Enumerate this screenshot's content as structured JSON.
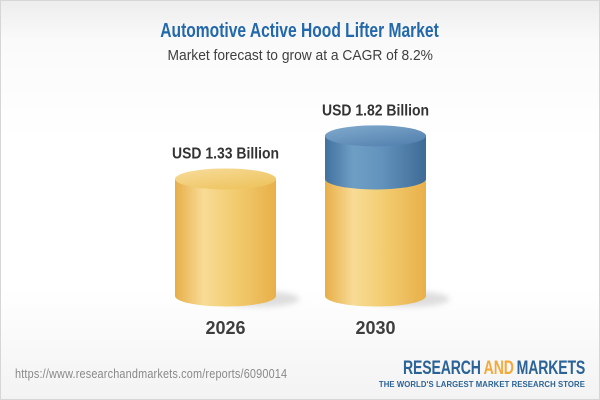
{
  "header": {
    "title": "Automotive Active Hood Lifter Market",
    "subtitle": "Market forecast to grow at a CAGR of 8.2%"
  },
  "chart_data": {
    "type": "bar",
    "variant": "3d-cylinder-stacked",
    "title": "Automotive Active Hood Lifter Market",
    "subtitle": "Market forecast to grow at a CAGR of 8.2%",
    "categories": [
      "2026",
      "2030"
    ],
    "values": [
      1.33,
      1.82
    ],
    "value_labels": [
      "USD 1.33 Billion",
      "USD 1.82 Billion"
    ],
    "unit": "USD Billion",
    "base_value": 1.33,
    "growth_value": 0.49,
    "cagr_percent": 8.2,
    "ylim": [
      0,
      2.05
    ],
    "legend": "none",
    "grid": "off",
    "colors": {
      "gold": {
        "edge": "#E7AE47",
        "light": "#F8DB96",
        "mid": "#F3CE74",
        "edge2": "#E8B049",
        "top_light": "#F7DC9B",
        "top_dark": "#EEC45F"
      },
      "blue": {
        "edge": "#41719E",
        "light": "#6F9EC5",
        "mid": "#6394BD",
        "edge2": "#3E6B96",
        "top_light": "#82ABCE",
        "top_dark": "#5583B0"
      },
      "shadow": "#C4C4C4",
      "value_label": "#333333",
      "year_label": "#3E3E3E"
    }
  },
  "footer": {
    "url": "https://www.researchandmarkets.com/reports/6090014",
    "logo": {
      "word1": "RESEARCH",
      "word2": "AND",
      "word3": "MARKETS",
      "tagline": "THE WORLD'S LARGEST MARKET RESEARCH STORE"
    }
  },
  "theme": {
    "title_color": "#2268AB",
    "subtitle_color": "#3F3F3F",
    "url_color": "#898989",
    "logo_blue": "#2B6397",
    "logo_gold": "#F2A93B",
    "tagline_color": "#2B6397",
    "frame_border": "#D6D6D6"
  }
}
